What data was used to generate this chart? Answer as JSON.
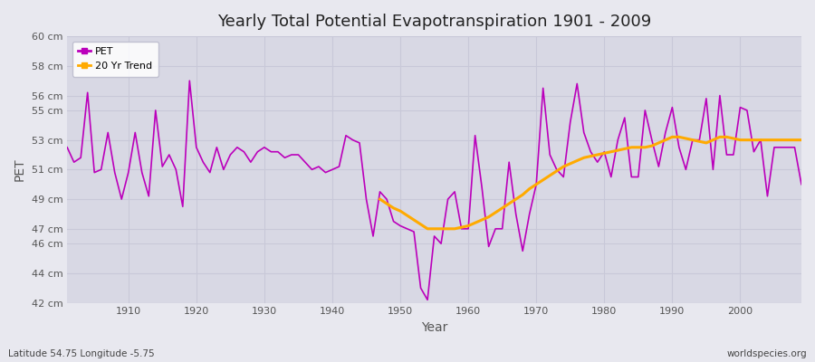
{
  "title": "Yearly Total Potential Evapotranspiration 1901 - 2009",
  "xlabel": "Year",
  "ylabel": "PET",
  "subtitle_left": "Latitude 54.75 Longitude -5.75",
  "subtitle_right": "worldspecies.org",
  "pet_color": "#bb00bb",
  "trend_color": "#ffaa00",
  "bg_color": "#e8e8ef",
  "plot_bg_color": "#d8d8e4",
  "grid_color": "#c8c8d8",
  "ylim": [
    42,
    60
  ],
  "xlim": [
    1901,
    2009
  ],
  "yticks": [
    42,
    44,
    46,
    47,
    49,
    51,
    53,
    55,
    56,
    58,
    60
  ],
  "ytick_labels": [
    "42 cm",
    "44 cm",
    "46 cm",
    "47 cm",
    "49 cm",
    "51 cm",
    "53 cm",
    "55 cm",
    "56 cm",
    "58 cm",
    "60 cm"
  ],
  "xticks": [
    1910,
    1920,
    1930,
    1940,
    1950,
    1960,
    1970,
    1980,
    1990,
    2000
  ],
  "years": [
    1901,
    1902,
    1903,
    1904,
    1905,
    1906,
    1907,
    1908,
    1909,
    1910,
    1911,
    1912,
    1913,
    1914,
    1915,
    1916,
    1917,
    1918,
    1919,
    1920,
    1921,
    1922,
    1923,
    1924,
    1925,
    1926,
    1927,
    1928,
    1929,
    1930,
    1931,
    1932,
    1933,
    1934,
    1935,
    1936,
    1937,
    1938,
    1939,
    1940,
    1941,
    1942,
    1943,
    1944,
    1945,
    1946,
    1947,
    1948,
    1949,
    1950,
    1951,
    1952,
    1953,
    1954,
    1955,
    1956,
    1957,
    1958,
    1959,
    1960,
    1961,
    1962,
    1963,
    1964,
    1965,
    1966,
    1967,
    1968,
    1969,
    1970,
    1971,
    1972,
    1973,
    1974,
    1975,
    1976,
    1977,
    1978,
    1979,
    1980,
    1981,
    1982,
    1983,
    1984,
    1985,
    1986,
    1987,
    1988,
    1989,
    1990,
    1991,
    1992,
    1993,
    1994,
    1995,
    1996,
    1997,
    1998,
    1999,
    2000,
    2001,
    2002,
    2003,
    2004,
    2005,
    2006,
    2007,
    2008,
    2009
  ],
  "pet_values": [
    52.5,
    51.5,
    51.8,
    56.2,
    50.8,
    51.0,
    53.5,
    50.8,
    49.0,
    50.8,
    53.5,
    50.8,
    49.2,
    55.0,
    51.2,
    52.0,
    51.0,
    48.5,
    57.0,
    52.5,
    51.5,
    50.8,
    52.5,
    51.0,
    52.0,
    52.5,
    52.2,
    51.5,
    52.2,
    52.5,
    52.2,
    52.2,
    51.8,
    52.0,
    52.0,
    51.5,
    51.0,
    51.2,
    50.8,
    51.0,
    51.2,
    53.3,
    53.0,
    52.8,
    49.0,
    46.5,
    49.5,
    49.0,
    47.5,
    47.2,
    47.0,
    46.8,
    43.0,
    42.2,
    46.5,
    46.0,
    49.0,
    49.5,
    47.0,
    47.0,
    53.3,
    49.8,
    45.8,
    47.0,
    47.0,
    51.5,
    48.0,
    45.5,
    48.0,
    50.0,
    56.5,
    52.0,
    51.0,
    50.5,
    54.2,
    56.8,
    53.5,
    52.2,
    51.5,
    52.2,
    50.5,
    53.0,
    54.5,
    50.5,
    50.5,
    55.0,
    53.0,
    51.2,
    53.5,
    55.2,
    52.5,
    51.0,
    53.0,
    53.0,
    55.8,
    51.0,
    56.0,
    52.0,
    52.0,
    55.2,
    55.0,
    52.2,
    53.0,
    49.2,
    52.5,
    52.5,
    52.5,
    52.5,
    50.0
  ],
  "trend_start_year": 1947,
  "trend_years": [
    1947,
    1948,
    1949,
    1950,
    1951,
    1952,
    1953,
    1954,
    1955,
    1956,
    1957,
    1958,
    1959,
    1960,
    1961,
    1962,
    1963,
    1964,
    1965,
    1966,
    1967,
    1968,
    1969,
    1970,
    1971,
    1972,
    1973,
    1974,
    1975,
    1976,
    1977,
    1978,
    1979,
    1980,
    1981,
    1982,
    1983,
    1984,
    1985,
    1986,
    1987,
    1988,
    1989,
    1990,
    1991,
    1992,
    1993,
    1994,
    1995,
    1996,
    1997,
    1998,
    1999,
    2000,
    2001,
    2002,
    2003,
    2004,
    2005,
    2006,
    2007,
    2008,
    2009
  ],
  "trend_values": [
    49.0,
    48.7,
    48.4,
    48.2,
    47.9,
    47.6,
    47.3,
    47.0,
    47.0,
    47.0,
    47.0,
    47.0,
    47.1,
    47.2,
    47.4,
    47.6,
    47.8,
    48.1,
    48.4,
    48.7,
    49.0,
    49.3,
    49.7,
    50.0,
    50.3,
    50.6,
    50.9,
    51.2,
    51.4,
    51.6,
    51.8,
    51.9,
    52.0,
    52.1,
    52.2,
    52.3,
    52.4,
    52.5,
    52.5,
    52.5,
    52.6,
    52.8,
    53.0,
    53.2,
    53.2,
    53.1,
    53.0,
    52.9,
    52.8,
    53.0,
    53.2,
    53.2,
    53.1,
    53.0,
    53.0,
    53.0,
    53.0,
    53.0,
    53.0,
    53.0,
    53.0,
    53.0,
    53.0
  ]
}
